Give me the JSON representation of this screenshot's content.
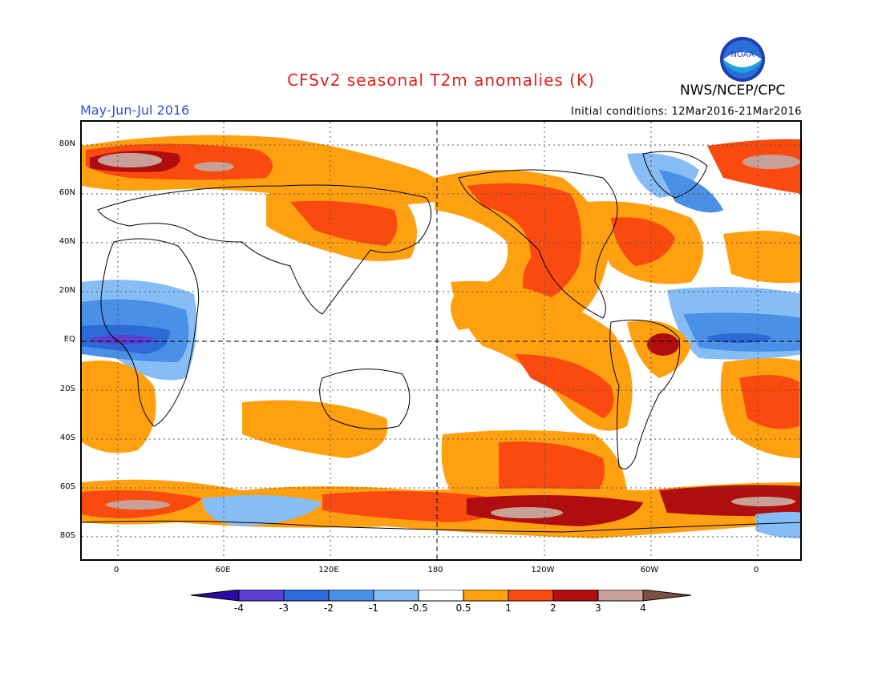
{
  "header": {
    "title": "CFSv2 seasonal T2m anomalies (K)",
    "season": "May-Jun-Jul 2016",
    "initial_conditions": "Initial conditions: 12Mar2016-21Mar2016",
    "agency": "NWS/NCEP/CPC",
    "logo_text": "NOAA"
  },
  "axes": {
    "lat_labels": [
      "80N",
      "60N",
      "40N",
      "20N",
      "EQ",
      "20S",
      "40S",
      "60S",
      "80S"
    ],
    "lon_labels": [
      "0",
      "60E",
      "120E",
      "180",
      "120W",
      "60W",
      "0"
    ]
  },
  "colorbar": {
    "tick_labels": [
      "-4",
      "-3",
      "-2",
      "-1",
      "-0.5",
      "0.5",
      "1",
      "2",
      "3",
      "4"
    ],
    "colors": [
      "#2a0aa8",
      "#5a3fd2",
      "#2d6ad8",
      "#4a90e6",
      "#86bdf4",
      "#ffffff",
      "#ffa010",
      "#fa4a10",
      "#b00e0e",
      "#c8a098",
      "#7a5040"
    ]
  }
}
